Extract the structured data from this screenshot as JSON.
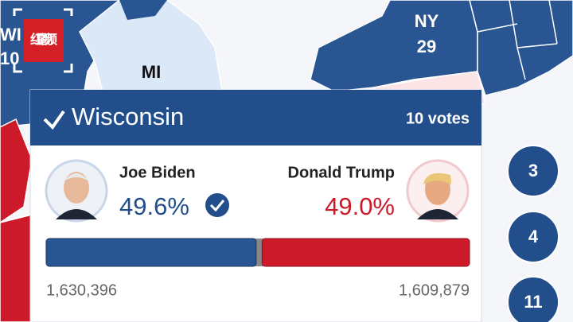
{
  "logo": "红星视频",
  "map": {
    "states": [
      {
        "abbr": "WI",
        "votes": "10"
      },
      {
        "abbr": "MI"
      },
      {
        "abbr": "NY",
        "votes": "29"
      }
    ]
  },
  "result": {
    "state": "Wisconsin",
    "electoral_votes": "10 votes",
    "candidates": [
      {
        "name": "Joe Biden",
        "votes": "1,630,396"
      },
      {
        "name": "Donald Trump",
        "votes": "1,609,879"
      }
    ],
    "share": {
      "values": [
        49.6,
        49.0
      ],
      "value_labels": [
        "49.6%",
        "49.0%"
      ]
    }
  },
  "side_votes": [
    "3",
    "4",
    "11"
  ]
}
